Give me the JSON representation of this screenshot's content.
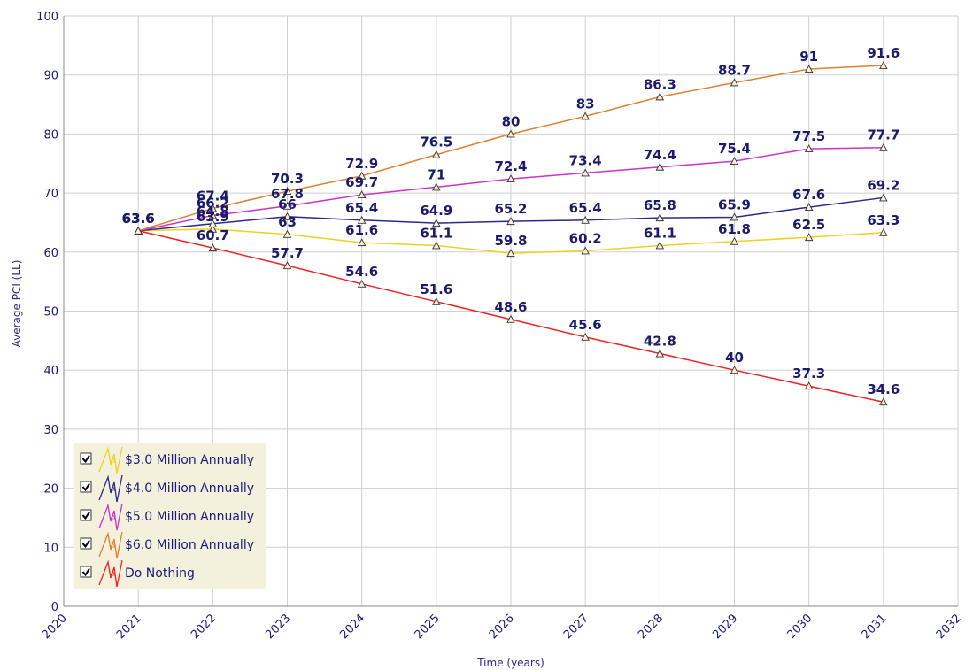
{
  "chart_data": {
    "type": "line",
    "xlabel": "Time (years)",
    "ylabel": "Average PCI (LL)",
    "xlim": [
      2020,
      2032
    ],
    "ylim": [
      0,
      100
    ],
    "xticks": [
      "2020",
      "2021",
      "2022",
      "2023",
      "2024",
      "2025",
      "2026",
      "2027",
      "2028",
      "2029",
      "2030",
      "2031",
      "2032"
    ],
    "yticks": [
      "0",
      "10",
      "20",
      "30",
      "40",
      "50",
      "60",
      "70",
      "80",
      "90",
      "100"
    ],
    "grid": true,
    "legend_position": "bottom-left",
    "x": [
      2021,
      2022,
      2023,
      2024,
      2025,
      2026,
      2027,
      2028,
      2029,
      2030,
      2031
    ],
    "series": [
      {
        "name": "$3.0 Million Annually",
        "color": "#f0d020",
        "values": [
          63.6,
          63.9,
          63,
          61.6,
          61.1,
          59.8,
          60.2,
          61.1,
          61.8,
          62.5,
          63.3
        ],
        "labels": [
          "63.6",
          "63.9",
          "63",
          "61.6",
          "61.1",
          "59.8",
          "60.2",
          "61.1",
          "61.8",
          "62.5",
          "63.3"
        ]
      },
      {
        "name": "$4.0 Million Annually",
        "color": "#2a2a8a",
        "values": [
          63.6,
          64.8,
          66,
          65.4,
          64.9,
          65.2,
          65.4,
          65.8,
          65.9,
          67.6,
          69.2
        ],
        "labels": [
          "63.6",
          "64.8",
          "66",
          "65.4",
          "64.9",
          "65.2",
          "65.4",
          "65.8",
          "65.9",
          "67.6",
          "69.2"
        ]
      },
      {
        "name": "$5.0 Million Annually",
        "color": "#cc33cc",
        "values": [
          63.6,
          66.2,
          67.8,
          69.7,
          71,
          72.4,
          73.4,
          74.4,
          75.4,
          77.5,
          77.7
        ],
        "labels": [
          "63.6",
          "66.2",
          "67.8",
          "69.7",
          "71",
          "72.4",
          "73.4",
          "74.4",
          "75.4",
          "77.5",
          "77.7"
        ]
      },
      {
        "name": "$6.0 Million Annually",
        "color": "#e08030",
        "values": [
          63.6,
          67.4,
          70.3,
          72.9,
          76.5,
          80,
          83,
          86.3,
          88.7,
          91,
          91.6
        ],
        "labels": [
          "63.6",
          "67.4",
          "70.3",
          "72.9",
          "76.5",
          "80",
          "83",
          "86.3",
          "88.7",
          "91",
          "91.6"
        ]
      },
      {
        "name": "Do Nothing",
        "color": "#ee2222",
        "values": [
          63.6,
          60.7,
          57.7,
          54.6,
          51.6,
          48.6,
          45.6,
          42.8,
          40,
          37.3,
          34.6
        ],
        "labels": [
          "63.6",
          "60.7",
          "57.7",
          "54.6",
          "51.6",
          "48.6",
          "45.6",
          "42.8",
          "40",
          "37.3",
          "34.6"
        ]
      }
    ],
    "legend_checked": [
      true,
      true,
      true,
      true,
      true
    ]
  }
}
